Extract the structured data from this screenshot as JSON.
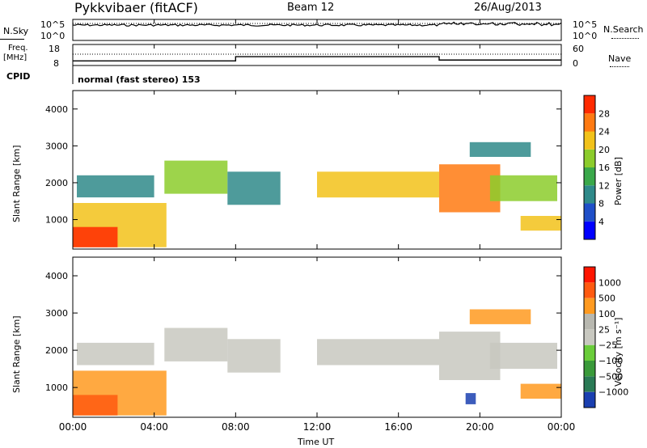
{
  "header": {
    "radar": "Pykkvibaer (fitACF)",
    "beam": "Beam 12",
    "date": "26/Aug/2013"
  },
  "nsky_panel": {
    "left_label": "N.Sky",
    "right_label": "N.Search",
    "left_ticks": [
      "10^5",
      "10^0"
    ],
    "right_ticks": [
      "10^5",
      "10^0"
    ]
  },
  "freq_panel": {
    "left_label": "Freq.",
    "left_unit": "[MHz]",
    "right_label": "Nave",
    "left_ticks": [
      "18",
      "8"
    ],
    "right_ticks": [
      "60",
      "0"
    ],
    "freq_steps": [
      {
        "t": 0,
        "v": 10.2
      },
      {
        "t": 8,
        "v": 12.2
      },
      {
        "t": 18,
        "v": 10.6
      },
      {
        "t": 24,
        "v": 10.6
      }
    ]
  },
  "cpid_panel": {
    "label": "CPID",
    "mode": "normal (fast stereo) 153"
  },
  "time_axis": {
    "label": "Time UT",
    "ticks": [
      "00:00",
      "04:00",
      "08:00",
      "12:00",
      "16:00",
      "20:00",
      "00:00"
    ]
  },
  "chart_data": [
    {
      "type": "heatmap",
      "name": "power",
      "ylabel": "Slant Range [km]",
      "yticks": [
        "1000",
        "2000",
        "3000",
        "4000"
      ],
      "ylim": [
        200,
        4500
      ],
      "xlim": [
        0,
        24
      ],
      "colorbar_label": "Power [dB]",
      "colorbar_ticks": [
        "4",
        "8",
        "12",
        "16",
        "20",
        "24",
        "28"
      ],
      "colorbar_colors": [
        "#0000ff",
        "#1f4fc8",
        "#2f8a8a",
        "#3aa84a",
        "#8ccc2c",
        "#f2c21a",
        "#ff7a12",
        "#ff2a00"
      ],
      "regions": [
        {
          "t0": 0.0,
          "t1": 4.6,
          "r0": 250,
          "r1": 1450,
          "v": 22
        },
        {
          "t0": 0.0,
          "t1": 2.2,
          "r0": 250,
          "r1": 800,
          "v": 28
        },
        {
          "t0": 0.2,
          "t1": 4.0,
          "r0": 1600,
          "r1": 2200,
          "v": 8
        },
        {
          "t0": 4.5,
          "t1": 7.6,
          "r0": 1700,
          "r1": 2600,
          "v": 16
        },
        {
          "t0": 7.6,
          "t1": 10.2,
          "r0": 1400,
          "r1": 2300,
          "v": 8
        },
        {
          "t0": 12.0,
          "t1": 18.0,
          "r0": 1600,
          "r1": 2300,
          "v": 20
        },
        {
          "t0": 18.0,
          "t1": 21.0,
          "r0": 1200,
          "r1": 2500,
          "v": 24
        },
        {
          "t0": 20.5,
          "t1": 23.8,
          "r0": 1500,
          "r1": 2200,
          "v": 16
        },
        {
          "t0": 19.5,
          "t1": 22.5,
          "r0": 2700,
          "r1": 3100,
          "v": 8
        },
        {
          "t0": 22.0,
          "t1": 24.0,
          "r0": 700,
          "r1": 1100,
          "v": 20
        }
      ]
    },
    {
      "type": "heatmap",
      "name": "velocity",
      "ylabel": "Slant Range [km]",
      "yticks": [
        "1000",
        "2000",
        "3000",
        "4000"
      ],
      "ylim": [
        200,
        4500
      ],
      "xlim": [
        0,
        24
      ],
      "colorbar_label": "Velocity [m s⁻¹]",
      "colorbar_ticks": [
        "1000",
        "500",
        "100",
        "25",
        "−25",
        "−100",
        "−500",
        "−1000"
      ],
      "colorbar_colors": [
        "#1a3fb0",
        "#2a7a55",
        "#3a9a3a",
        "#6acd3a",
        "#c8c8c0",
        "#b8b8b0",
        "#ff9a20",
        "#ff5a10",
        "#ff1500"
      ],
      "regions": [
        {
          "t0": 0.0,
          "t1": 4.6,
          "r0": 250,
          "r1": 1450,
          "v": -100
        },
        {
          "t0": 0.0,
          "t1": 2.2,
          "r0": 250,
          "r1": 800,
          "v": -500
        },
        {
          "t0": 0.2,
          "t1": 4.0,
          "r0": 1600,
          "r1": 2200,
          "v": 0
        },
        {
          "t0": 4.5,
          "t1": 7.6,
          "r0": 1700,
          "r1": 2600,
          "v": 0
        },
        {
          "t0": 7.6,
          "t1": 10.2,
          "r0": 1400,
          "r1": 2300,
          "v": 0
        },
        {
          "t0": 12.0,
          "t1": 18.0,
          "r0": 1600,
          "r1": 2300,
          "v": 0
        },
        {
          "t0": 18.0,
          "t1": 21.0,
          "r0": 1200,
          "r1": 2500,
          "v": 0
        },
        {
          "t0": 19.3,
          "t1": 19.8,
          "r0": 550,
          "r1": 850,
          "v": 1000
        },
        {
          "t0": 20.5,
          "t1": 23.8,
          "r0": 1500,
          "r1": 2200,
          "v": 0
        },
        {
          "t0": 19.5,
          "t1": 22.5,
          "r0": 2700,
          "r1": 3100,
          "v": -100
        },
        {
          "t0": 22.0,
          "t1": 24.0,
          "r0": 700,
          "r1": 1100,
          "v": -100
        }
      ]
    }
  ]
}
